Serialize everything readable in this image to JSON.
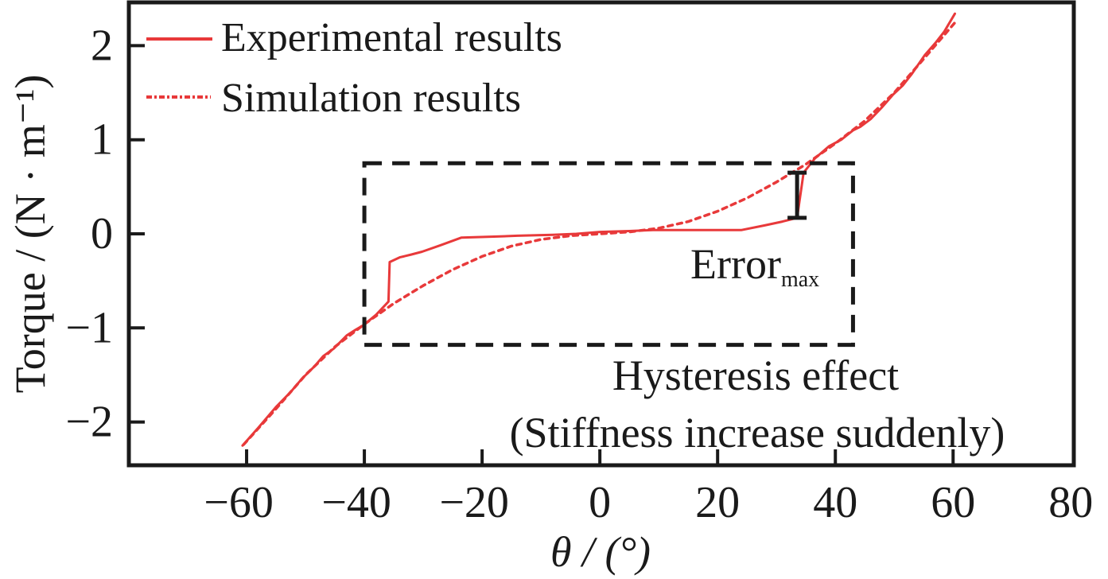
{
  "chart_data": {
    "type": "line",
    "title": "",
    "xlabel": "θ / (°)",
    "ylabel": "Torque / (N · m⁻¹)",
    "xlim": [
      -80,
      80.5
    ],
    "ylim": [
      -2.46,
      2.46
    ],
    "xticks": [
      -60,
      -40,
      -20,
      0,
      20,
      40,
      60,
      80
    ],
    "yticks": [
      -2,
      -1,
      0,
      1,
      2
    ],
    "xtick_labels": [
      "−60",
      "−40",
      "−20",
      "0",
      "20",
      "40",
      "60",
      "80"
    ],
    "ytick_labels": [
      "−2",
      "−1",
      "0",
      "1",
      "2"
    ],
    "grid": false,
    "legend_position": "top-left",
    "series": [
      {
        "name": "Experimental results",
        "style": "solid",
        "color": "#e8393a",
        "x": [
          -60.7,
          -58,
          -55,
          -52.5,
          -50.6,
          -48.5,
          -47,
          -45.2,
          -43,
          -41.5,
          -40.1,
          -38,
          -35.9,
          -35.7,
          -34,
          -32,
          -30.2,
          -27,
          -23.5,
          -18,
          -14,
          -8,
          -4,
          0,
          5,
          9,
          13.2,
          18,
          24,
          28,
          31,
          33.5,
          34.6,
          36.5,
          38.9,
          41,
          43,
          44.3,
          46,
          48,
          49.8,
          51.5,
          53,
          55.2,
          57,
          58.5,
          60.3
        ],
        "y": [
          -2.25,
          -2.06,
          -1.84,
          -1.68,
          -1.54,
          -1.41,
          -1.3,
          -1.22,
          -1.08,
          -1.02,
          -0.97,
          -0.86,
          -0.72,
          -0.3,
          -0.25,
          -0.22,
          -0.19,
          -0.12,
          -0.04,
          -0.03,
          -0.02,
          -0.01,
          0.0,
          0.02,
          0.03,
          0.04,
          0.04,
          0.04,
          0.04,
          0.09,
          0.13,
          0.17,
          0.65,
          0.8,
          0.93,
          1.0,
          1.1,
          1.14,
          1.22,
          1.35,
          1.48,
          1.58,
          1.7,
          1.9,
          2.03,
          2.15,
          2.34
        ]
      },
      {
        "name": "Simulation results",
        "style": "dotted",
        "color": "#e8393a",
        "x": [
          -60.5,
          -55,
          -50,
          -45,
          -40,
          -35,
          -30,
          -25,
          -20,
          -15,
          -10,
          -5,
          0,
          5,
          10,
          15,
          20,
          25,
          30,
          35,
          40,
          45,
          50,
          55,
          60.5
        ],
        "y": [
          -2.24,
          -1.86,
          -1.5,
          -1.2,
          -0.96,
          -0.74,
          -0.55,
          -0.38,
          -0.24,
          -0.13,
          -0.06,
          -0.02,
          0.0,
          0.02,
          0.06,
          0.13,
          0.24,
          0.38,
          0.55,
          0.74,
          0.96,
          1.2,
          1.5,
          1.86,
          2.26
        ]
      }
    ],
    "annotations": {
      "hysteresis_box": {
        "x_range": [
          -40,
          43
        ],
        "y_range": [
          -1.18,
          0.75
        ]
      },
      "error_bar": {
        "x": 33.5,
        "y_range": [
          0.17,
          0.65
        ]
      },
      "error_label_main": "Error",
      "error_label_sub": "max",
      "hysteresis_line1": "Hysteresis effect",
      "hysteresis_line2": "(Stiffness increase suddenly)"
    }
  }
}
